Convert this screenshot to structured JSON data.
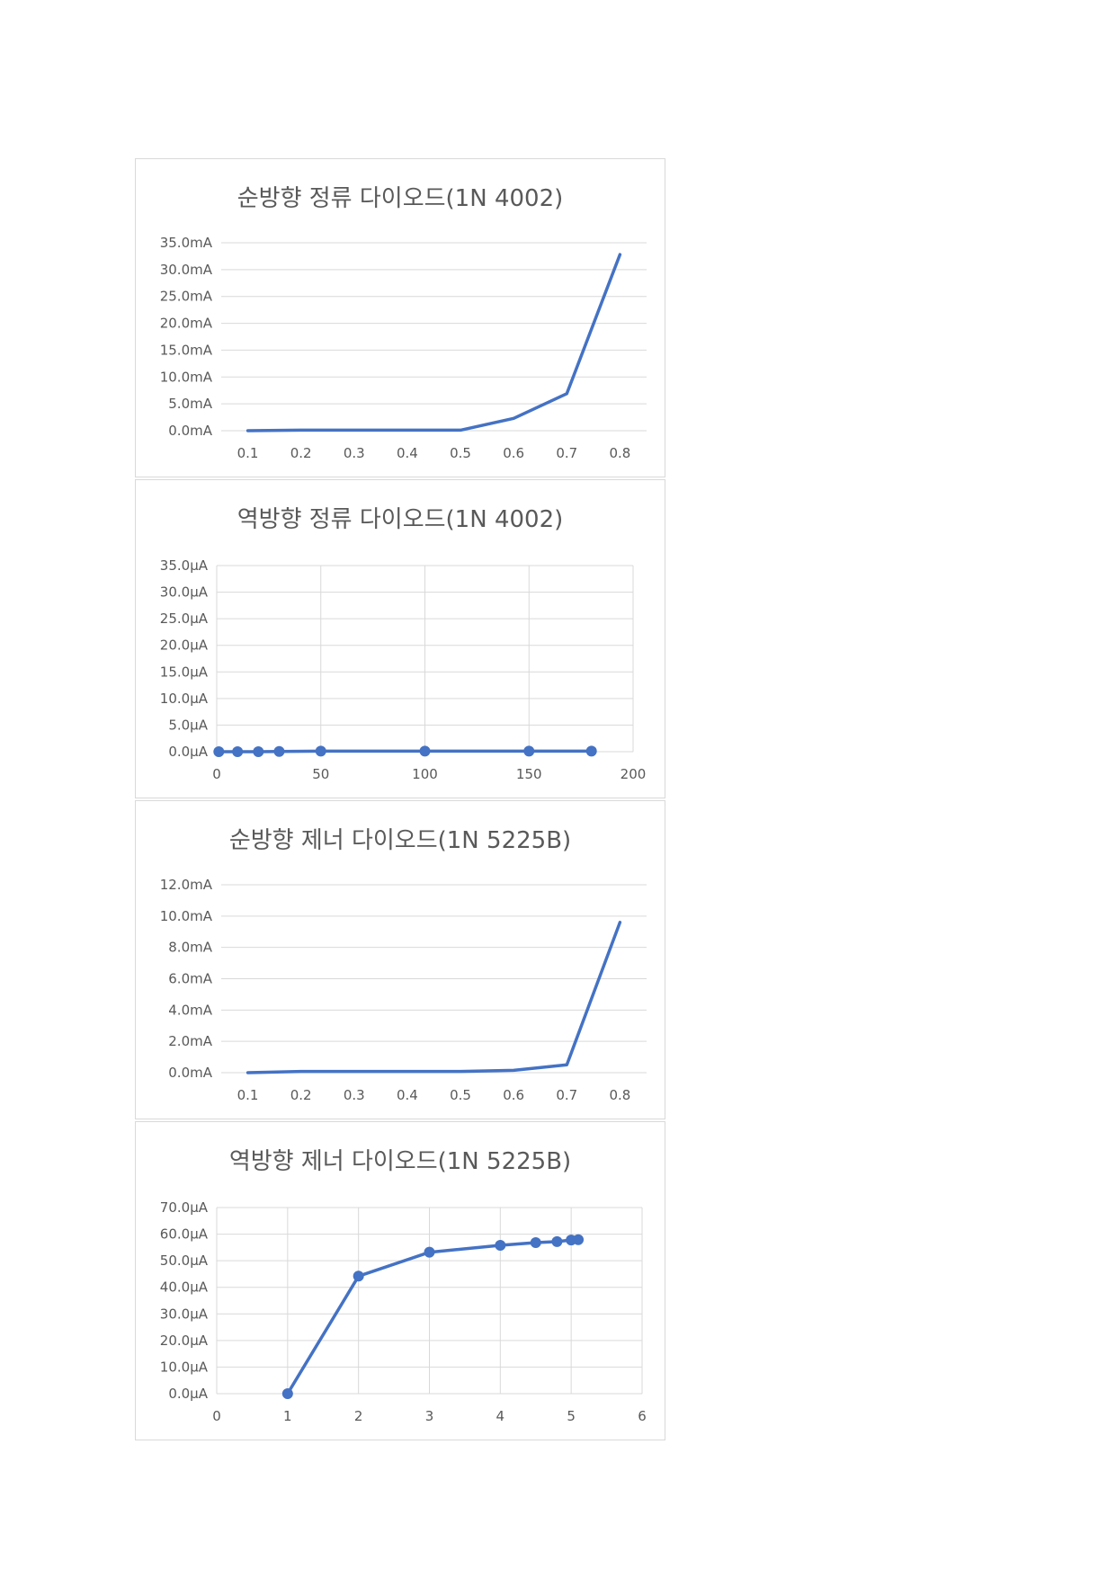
{
  "chart_data": [
    {
      "type": "line",
      "title": "순방향 정류 다이오드(1N 4002)",
      "x_axis": "category",
      "categories": [
        "0.1",
        "0.2",
        "0.3",
        "0.4",
        "0.5",
        "0.6",
        "0.7",
        "0.8"
      ],
      "series": [
        {
          "values": [
            0.0,
            0.1,
            0.1,
            0.1,
            0.1,
            2.3,
            6.9,
            32.8
          ]
        }
      ],
      "ylim": [
        0,
        35
      ],
      "yticks": [
        0,
        5,
        10,
        15,
        20,
        25,
        30,
        35
      ],
      "ytick_labels": [
        "0.0mA",
        "5.0mA",
        "10.0mA",
        "15.0mA",
        "20.0mA",
        "25.0mA",
        "30.0mA",
        "35.0mA"
      ],
      "horizontal_grid": true,
      "vertical_grid": false,
      "markers": false,
      "color": "#4472c4"
    },
    {
      "type": "scatter",
      "title": "역방향 정류 다이오드(1N 4002)",
      "x_axis": "value",
      "xlim": [
        0,
        200
      ],
      "xticks": [
        0,
        50,
        100,
        150,
        200
      ],
      "xtick_labels": [
        "0",
        "50",
        "100",
        "150",
        "200"
      ],
      "series": [
        {
          "x": [
            1,
            10,
            20,
            30,
            50,
            100,
            150,
            180
          ],
          "y": [
            0,
            0,
            0,
            0.05,
            0.1,
            0.1,
            0.1,
            0.1
          ]
        }
      ],
      "ylim": [
        0,
        35
      ],
      "yticks": [
        0,
        5,
        10,
        15,
        20,
        25,
        30,
        35
      ],
      "ytick_labels": [
        "0.0µA",
        "5.0µA",
        "10.0µA",
        "15.0µA",
        "20.0µA",
        "25.0µA",
        "30.0µA",
        "35.0µA"
      ],
      "horizontal_grid": true,
      "vertical_grid": true,
      "markers": true,
      "color": "#4472c4"
    },
    {
      "type": "line",
      "title": "순방향 제너 다이오드(1N 5225B)",
      "x_axis": "category",
      "categories": [
        "0.1",
        "0.2",
        "0.3",
        "0.4",
        "0.5",
        "0.6",
        "0.7",
        "0.8"
      ],
      "series": [
        {
          "values": [
            0.0,
            0.08,
            0.08,
            0.08,
            0.08,
            0.15,
            0.5,
            9.6
          ]
        }
      ],
      "ylim": [
        0,
        12
      ],
      "yticks": [
        0,
        2,
        4,
        6,
        8,
        10,
        12
      ],
      "ytick_labels": [
        "0.0mA",
        "2.0mA",
        "4.0mA",
        "6.0mA",
        "8.0mA",
        "10.0mA",
        "12.0mA"
      ],
      "horizontal_grid": true,
      "vertical_grid": false,
      "markers": false,
      "color": "#4472c4"
    },
    {
      "type": "scatter",
      "title": "역방향 제너 다이오드(1N 5225B)",
      "x_axis": "value",
      "xlim": [
        0,
        6
      ],
      "xticks": [
        0,
        1,
        2,
        3,
        4,
        5,
        6
      ],
      "xtick_labels": [
        "0",
        "1",
        "2",
        "3",
        "4",
        "5",
        "6"
      ],
      "series": [
        {
          "x": [
            1,
            2,
            3,
            4,
            4.5,
            4.8,
            5.0,
            5.1
          ],
          "y": [
            0,
            44.2,
            53.2,
            55.8,
            56.8,
            57.2,
            57.8,
            57.9
          ]
        }
      ],
      "ylim": [
        0,
        70
      ],
      "yticks": [
        0,
        10,
        20,
        30,
        40,
        50,
        60,
        70
      ],
      "ytick_labels": [
        "0.0µA",
        "10.0µA",
        "20.0µA",
        "30.0µA",
        "40.0µA",
        "50.0µA",
        "60.0µA",
        "70.0µA"
      ],
      "horizontal_grid": true,
      "vertical_grid": true,
      "markers": true,
      "color": "#4472c4"
    }
  ]
}
